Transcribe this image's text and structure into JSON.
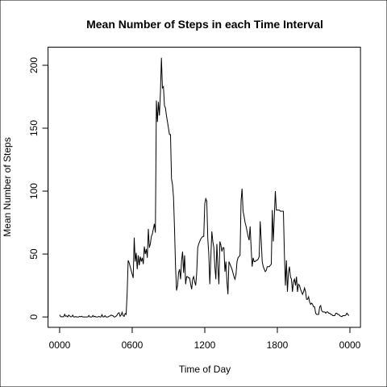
{
  "chart_data": {
    "type": "line",
    "title": "Mean Number of Steps in each Time Interval",
    "x_label": "Time of Day",
    "y_label": "Mean Number of Steps",
    "color": "#000000",
    "xlim": [
      -11.48,
      298.48
    ],
    "xticks": [
      {
        "value": 0,
        "label": "0000"
      },
      {
        "value": 72,
        "label": "0600"
      },
      {
        "value": 144,
        "label": "1200"
      },
      {
        "value": 216,
        "label": "1800"
      },
      {
        "value": 288,
        "label": "0000"
      }
    ],
    "ylim": [
      -8.25,
      214.4
    ],
    "yticks": [
      0,
      50,
      100,
      150,
      200
    ],
    "values": [
      1.7,
      0.3,
      0.1,
      0.2,
      0.1,
      2.1,
      0.5,
      0.9,
      0,
      1.5,
      0.8,
      0.1,
      0.2,
      1.4,
      0,
      0,
      0.3,
      0,
      0,
      0,
      0.5,
      0.1,
      0.6,
      0,
      0,
      0,
      0,
      0,
      0,
      1.2,
      0,
      0,
      0,
      1.2,
      0.1,
      0.6,
      0,
      0,
      0,
      0.5,
      0,
      0,
      1.8,
      0,
      0.1,
      1,
      0,
      0,
      0,
      0.6,
      0.8,
      1.5,
      1.2,
      0.9,
      0,
      0.1,
      0.6,
      1.5,
      3,
      3.4,
      0.5,
      1.5,
      3.7,
      1,
      0.4,
      2.7,
      2,
      19,
      45,
      43,
      40,
      37,
      34,
      31,
      63,
      44,
      51,
      38,
      49,
      41,
      48,
      44,
      47,
      42,
      56,
      50,
      54,
      47,
      70,
      55,
      58,
      64,
      66,
      70,
      74,
      67,
      172,
      155,
      171,
      160,
      178,
      206,
      182,
      183,
      168,
      166,
      160,
      155,
      150,
      145,
      145,
      110,
      105,
      95,
      70,
      40,
      21,
      25,
      35,
      38,
      30,
      45,
      52,
      35,
      49,
      26,
      32,
      32,
      31,
      31,
      26,
      22,
      30,
      32,
      28,
      25,
      35,
      55,
      58,
      60,
      62,
      63,
      64,
      64,
      90,
      94,
      92,
      62,
      50,
      26,
      47,
      68,
      60,
      55,
      40,
      30,
      58,
      40,
      26,
      60,
      57,
      52,
      55,
      55,
      36,
      44,
      28,
      18,
      44,
      42,
      40,
      38,
      35,
      32,
      30,
      34,
      44,
      47,
      48,
      49,
      92,
      102,
      84,
      80,
      75,
      72,
      68,
      64,
      61,
      72,
      55,
      40,
      47,
      44,
      44,
      45,
      45,
      46,
      48,
      76,
      61,
      44,
      40,
      38,
      36,
      37,
      40,
      40,
      40,
      41,
      42,
      85,
      60,
      80,
      100,
      85,
      85,
      85,
      85,
      84,
      84,
      84,
      84,
      50,
      25,
      45,
      20,
      35,
      40,
      32,
      30,
      20,
      28,
      30,
      25,
      32,
      20,
      26,
      25,
      22,
      20,
      18,
      20,
      23,
      20,
      14,
      14,
      16,
      12,
      10,
      11,
      10,
      8,
      8,
      3,
      2,
      2,
      2,
      8,
      9,
      5,
      4,
      4,
      4,
      3,
      4,
      4,
      3,
      3,
      2,
      2,
      1,
      1,
      1,
      3,
      3,
      2,
      2,
      1,
      0.5,
      0.3,
      1,
      1,
      1,
      1.5,
      3,
      2,
      1
    ]
  }
}
